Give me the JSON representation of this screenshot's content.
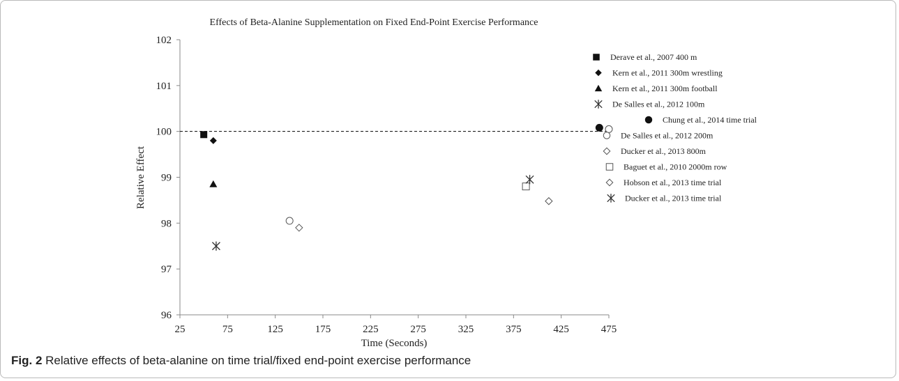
{
  "chart_data": {
    "type": "scatter",
    "title": "Effects of Beta-Alanine Supplementation on Fixed End-Point Exercise Performance",
    "xlabel": "Time (Seconds)",
    "ylabel": "Relative Effect",
    "xlim": [
      25,
      475
    ],
    "ylim": [
      96,
      102
    ],
    "xticks": [
      25,
      75,
      125,
      175,
      225,
      275,
      325,
      375,
      425,
      475
    ],
    "yticks": [
      96,
      97,
      98,
      99,
      100,
      101,
      102
    ],
    "reference_line": {
      "y": 100,
      "style": "dashed"
    },
    "grid": false,
    "legend_position": "right",
    "series": [
      {
        "name": "Derave et al., 2007 400 m",
        "marker": "square-filled",
        "points": [
          [
            50,
            99.93
          ]
        ]
      },
      {
        "name": "Kern et al., 2011 300m wrestling",
        "marker": "diamond-filled",
        "points": [
          [
            60,
            99.8
          ]
        ]
      },
      {
        "name": "Kern et al., 2011 300m football",
        "marker": "triangle-filled",
        "points": [
          [
            60,
            98.85
          ]
        ]
      },
      {
        "name": "De Salles et al., 2012 100m",
        "marker": "asterisk",
        "points": [
          [
            63,
            97.5
          ]
        ]
      },
      {
        "name": "Chung et al., 2014 time trial",
        "marker": "circle-filled",
        "points": [
          [
            465,
            100.08
          ]
        ]
      },
      {
        "name": "De Salles et al., 2012 200m",
        "marker": "circle-open",
        "points": [
          [
            140,
            98.05
          ],
          [
            475,
            100.05
          ]
        ]
      },
      {
        "name": "Ducker et al., 2013 800m",
        "marker": "diamond-open",
        "points": [
          [
            150,
            97.9
          ]
        ]
      },
      {
        "name": "Baguet et al., 2010 2000m row",
        "marker": "square-open",
        "points": [
          [
            388,
            98.8
          ]
        ]
      },
      {
        "name": "Hobson et al., 2013 time trial",
        "marker": "diamond-open",
        "points": [
          [
            412,
            98.48
          ]
        ]
      },
      {
        "name": "Ducker et al., 2013 time trial",
        "marker": "asterisk",
        "points": [
          [
            392,
            98.95
          ]
        ]
      }
    ]
  },
  "caption": {
    "label": "Fig. 2",
    "text": " Relative effects of beta-alanine on time trial/fixed end-point exercise performance"
  }
}
